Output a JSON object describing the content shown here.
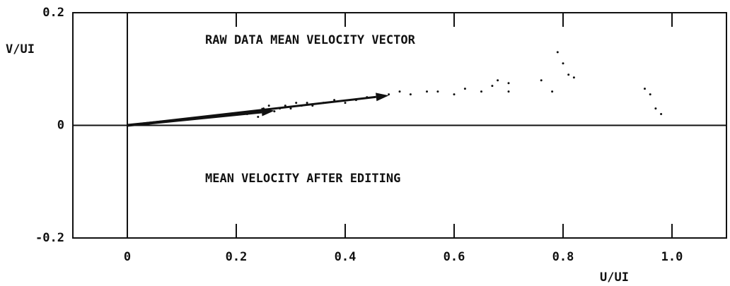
{
  "chart_data": {
    "type": "scatter",
    "x_label": "U/UI",
    "y_label": "V/UI",
    "annotations": [
      "RAW DATA MEAN VELOCITY VECTOR",
      "MEAN VELOCITY AFTER EDITING"
    ],
    "xlim": [
      -0.1,
      1.1
    ],
    "ylim": [
      -0.2,
      0.2
    ],
    "xticks": [
      0,
      0.2,
      0.4,
      0.6,
      0.8,
      {
        "value": 1,
        "label": "1.0"
      }
    ],
    "yticks": [
      0.2,
      0,
      -0.2
    ],
    "color": "#111111",
    "x": [
      0.22,
      0.23,
      0.24,
      0.25,
      0.25,
      0.26,
      0.27,
      0.28,
      0.29,
      0.3,
      0.31,
      0.32,
      0.33,
      0.34,
      0.36,
      0.38,
      0.4,
      0.42,
      0.44,
      0.48,
      0.5,
      0.52,
      0.55,
      0.57,
      0.6,
      0.62,
      0.65,
      0.67,
      0.68,
      0.7,
      0.7,
      0.76,
      0.78,
      0.79,
      0.8,
      0.81,
      0.82,
      0.95,
      0.96,
      0.97,
      0.98
    ],
    "values": [
      0.02,
      0.025,
      0.015,
      0.03,
      0.02,
      0.035,
      0.025,
      0.03,
      0.035,
      0.03,
      0.04,
      0.035,
      0.04,
      0.035,
      0.04,
      0.045,
      0.04,
      0.045,
      0.05,
      0.055,
      0.06,
      0.055,
      0.06,
      0.06,
      0.055,
      0.065,
      0.06,
      0.07,
      0.08,
      0.075,
      0.06,
      0.08,
      0.06,
      0.13,
      0.11,
      0.09,
      0.085,
      0.065,
      0.055,
      0.03,
      0.02
    ],
    "vectors": [
      {
        "u": 0.48,
        "v": 0.053
      },
      {
        "u": 0.27,
        "v": 0.026
      }
    ]
  }
}
